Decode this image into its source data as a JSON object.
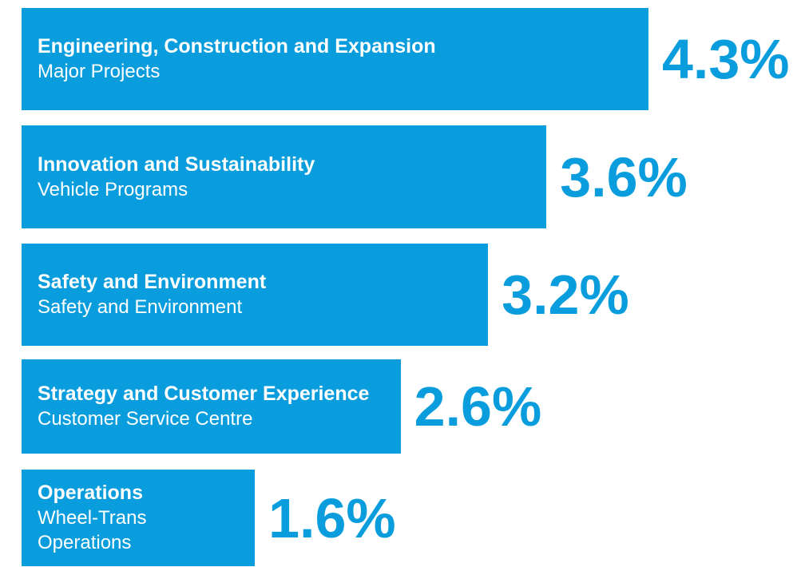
{
  "chart_data": {
    "type": "bar",
    "categories": [
      "Engineering, Construction and Expansion",
      "Innovation and Sustainability",
      "Safety and Environment",
      "Strategy and Customer Experience",
      "Operations"
    ],
    "subcategories": [
      "Major Projects",
      "Vehicle Programs",
      "Safety and Environment",
      "Customer Service Centre",
      "Wheel-Trans Operations"
    ],
    "values": [
      4.3,
      3.6,
      3.2,
      2.6,
      1.6
    ],
    "value_labels": [
      "4.3%",
      "3.6%",
      "3.2%",
      "2.6%",
      "1.6%"
    ],
    "color": "#0a9ddd"
  }
}
